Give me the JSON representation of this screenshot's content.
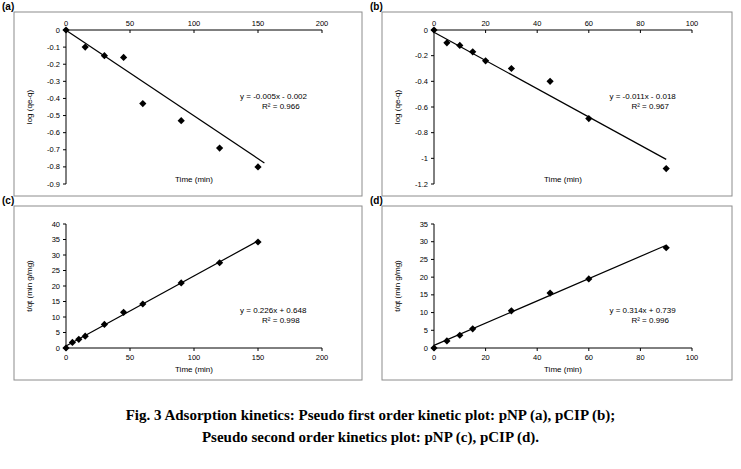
{
  "chart_data": [
    {
      "type": "scatter",
      "title": "(a)",
      "x_label": "Time (min)",
      "y_label": "log (qe-q)",
      "xlim": [
        0,
        200
      ],
      "xticks": [
        0,
        50,
        100,
        150,
        200
      ],
      "ylim": [
        -0.9,
        0
      ],
      "yticks": [
        0,
        -0.1,
        -0.2,
        -0.3,
        -0.4,
        -0.5,
        -0.6,
        -0.7,
        -0.8,
        -0.9
      ],
      "grid": false,
      "annotations": [
        "y = -0.005x - 0.002",
        "R² = 0.966"
      ],
      "series": [
        {
          "type": "scatter",
          "marker": "diamond",
          "color": "#000000",
          "x": [
            0,
            15,
            30,
            45,
            60,
            90,
            120,
            150
          ],
          "values": [
            0,
            -0.1,
            -0.15,
            -0.16,
            -0.43,
            -0.53,
            -0.69,
            -0.8
          ]
        },
        {
          "type": "line",
          "line_style": "solid",
          "color": "#000000",
          "x": [
            0,
            155
          ],
          "values": [
            -0.002,
            -0.777
          ]
        }
      ]
    },
    {
      "type": "scatter",
      "title": "(b)",
      "x_label": "Time (min)",
      "y_label": "log (qe-q)",
      "xlim": [
        0,
        100
      ],
      "xticks": [
        0,
        20,
        40,
        60,
        80,
        100
      ],
      "ylim": [
        -1.2,
        0
      ],
      "yticks": [
        0,
        -0.2,
        -0.4,
        -0.6,
        -0.8,
        -1,
        -1.2
      ],
      "grid": false,
      "annotations": [
        "y = -0.011x - 0.018",
        "R² = 0.967"
      ],
      "series": [
        {
          "type": "scatter",
          "marker": "diamond",
          "color": "#000000",
          "x": [
            0,
            5,
            10,
            15,
            20,
            30,
            45,
            60,
            90
          ],
          "values": [
            0,
            -0.1,
            -0.12,
            -0.17,
            -0.24,
            -0.3,
            -0.4,
            -0.69,
            -1.08
          ]
        },
        {
          "type": "line",
          "line_style": "solid",
          "color": "#000000",
          "x": [
            0,
            90
          ],
          "values": [
            -0.018,
            -1.008
          ]
        }
      ]
    },
    {
      "type": "scatter",
      "title": "(c)",
      "x_label": "Time (min)",
      "y_label": "t/qt (min g/mg)",
      "xlim": [
        0,
        200
      ],
      "xticks": [
        0,
        50,
        100,
        150,
        200
      ],
      "ylim": [
        0,
        40
      ],
      "yticks": [
        0,
        5,
        10,
        15,
        20,
        25,
        30,
        35,
        40
      ],
      "grid": false,
      "annotations": [
        "y = 0.226x + 0.648",
        "R² = 0.998"
      ],
      "series": [
        {
          "type": "scatter",
          "marker": "diamond",
          "color": "#000000",
          "x": [
            0,
            5,
            10,
            15,
            30,
            45,
            60,
            90,
            120,
            150
          ],
          "values": [
            0,
            1.8,
            2.8,
            3.8,
            7.6,
            11.5,
            14.2,
            21,
            27.5,
            34.2
          ]
        },
        {
          "type": "line",
          "line_style": "solid",
          "color": "#000000",
          "x": [
            0,
            150
          ],
          "values": [
            0.648,
            34.548
          ]
        }
      ]
    },
    {
      "type": "scatter",
      "title": "(d)",
      "x_label": "Time (min)",
      "y_label": "t/qt (min g/mg)",
      "xlim": [
        0,
        100
      ],
      "xticks": [
        0,
        20,
        40,
        60,
        80,
        100
      ],
      "ylim": [
        0,
        35
      ],
      "yticks": [
        0,
        5,
        10,
        15,
        20,
        25,
        30,
        35
      ],
      "grid": false,
      "annotations": [
        "y = 0.314x + 0.739",
        "R² = 0.996"
      ],
      "series": [
        {
          "type": "scatter",
          "marker": "diamond",
          "color": "#000000",
          "x": [
            0,
            5,
            10,
            15,
            30,
            45,
            60,
            90
          ],
          "values": [
            0,
            2,
            3.6,
            5.4,
            10.5,
            15.5,
            19.5,
            28.3
          ]
        },
        {
          "type": "line",
          "line_style": "solid",
          "color": "#000000",
          "x": [
            0,
            90
          ],
          "values": [
            0.739,
            29
          ]
        }
      ]
    }
  ],
  "caption": [
    "Fig. 3 Adsorption kinetics: Pseudo first order kinetic plot:  pNP (a), pCIP (b);",
    "Pseudo second order kinetics plot: pNP (c), pCIP (d)."
  ]
}
